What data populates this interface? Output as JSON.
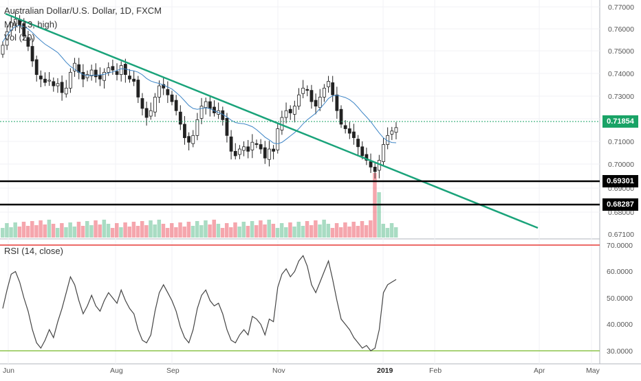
{
  "legend": {
    "symbol": "Australian Dollar/U.S. Dollar, 1D, FXCM",
    "sma_label": "MA (13, high)",
    "vol_label": "Vol (20)",
    "rsi_label": "RSI (14, close)"
  },
  "price_axis": {
    "ticks": [
      "0.77000",
      "0.76000",
      "0.75000",
      "0.74000",
      "0.73000",
      "0.71000",
      "0.70000",
      "0.69000",
      "0.68000",
      "0.67100"
    ],
    "current_price": "0.71854",
    "support_1": "0.69301",
    "support_2": "0.68287"
  },
  "rsi_axis": {
    "ticks": [
      "70.0000",
      "60.0000",
      "50.0000",
      "40.0000",
      "30.0000"
    ]
  },
  "time_axis": {
    "ticks": [
      "Jun",
      "Aug",
      "Sep",
      "Nov",
      "2019",
      "Feb",
      "Apr",
      "May"
    ]
  },
  "colors": {
    "up": "#53b987",
    "down": "#eb4d5c",
    "trendline": "#1aa37a",
    "sma": "#3d85c6",
    "support_line": "#000000",
    "rsi_upper": "#e53935",
    "rsi_lower": "#8bc34a",
    "badge_current": "#19a366"
  },
  "chart_data": {
    "type": "candlestick",
    "title": "Australian Dollar/U.S. Dollar, 1D, FXCM",
    "ylim": [
      0.671,
      0.772
    ],
    "close_series": [
      0.755,
      0.761,
      0.765,
      0.7665,
      0.764,
      0.759,
      0.7545,
      0.748,
      0.742,
      0.74,
      0.7385,
      0.7395,
      0.737,
      0.738,
      0.734,
      0.736,
      0.743,
      0.747,
      0.743,
      0.74,
      0.742,
      0.744,
      0.741,
      0.74,
      0.743,
      0.745,
      0.744,
      0.742,
      0.746,
      0.742,
      0.74,
      0.739,
      0.732,
      0.727,
      0.723,
      0.726,
      0.732,
      0.737,
      0.736,
      0.733,
      0.73,
      0.726,
      0.72,
      0.714,
      0.712,
      0.715,
      0.722,
      0.728,
      0.73,
      0.727,
      0.725,
      0.726,
      0.722,
      0.715,
      0.708,
      0.706,
      0.709,
      0.71,
      0.708,
      0.712,
      0.711,
      0.709,
      0.705,
      0.709,
      0.708,
      0.718,
      0.723,
      0.726,
      0.725,
      0.728,
      0.733,
      0.736,
      0.735,
      0.73,
      0.728,
      0.732,
      0.736,
      0.739,
      0.733,
      0.726,
      0.72,
      0.718,
      0.716,
      0.714,
      0.71,
      0.706,
      0.704,
      0.701,
      0.699,
      0.704,
      0.711,
      0.715,
      0.717,
      0.7185
    ],
    "rsi_series": [
      46,
      53,
      59,
      60,
      56,
      50,
      45,
      38,
      33,
      31,
      34,
      38,
      35,
      41,
      46,
      52,
      58,
      55,
      49,
      44,
      47,
      51,
      47,
      45,
      49,
      52,
      50,
      48,
      53,
      49,
      46,
      44,
      38,
      34,
      33,
      36,
      45,
      52,
      55,
      52,
      49,
      45,
      39,
      35,
      33,
      38,
      46,
      51,
      53,
      49,
      47,
      48,
      44,
      38,
      34,
      33,
      36,
      38,
      36,
      43,
      42,
      40,
      36,
      42,
      41,
      54,
      59,
      61,
      58,
      60,
      64,
      66,
      62,
      55,
      52,
      56,
      60,
      64,
      57,
      49,
      42,
      40,
      38,
      35,
      33,
      31,
      32,
      30,
      31,
      38,
      52,
      55,
      56,
      57
    ],
    "rsi_levels": [
      70,
      30
    ]
  }
}
